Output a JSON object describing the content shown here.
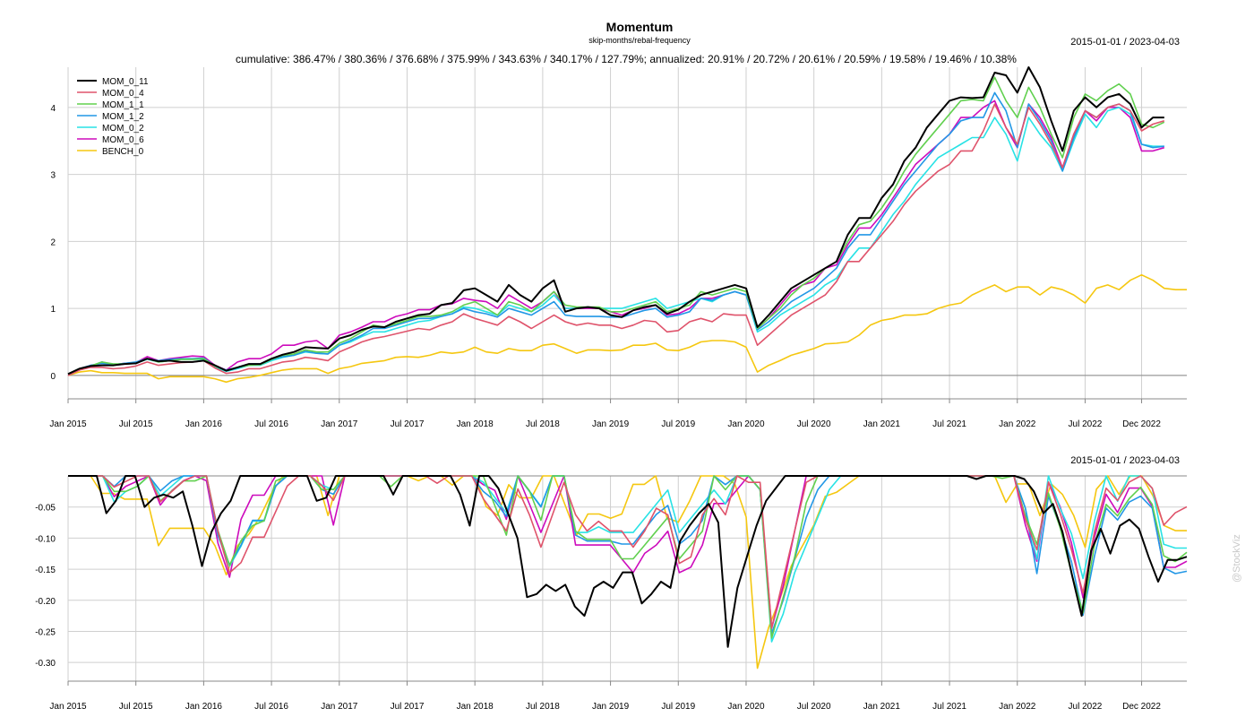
{
  "page": {
    "title": "Momentum",
    "subtitle": "skip-months/rebal-frequency",
    "summary": "cumulative: 386.47% / 380.36% / 376.68% / 375.99% / 343.63% / 340.17% / 127.79%; annualized: 20.91% / 20.72% / 20.61% / 20.59% / 19.58% / 19.46% / 10.38%",
    "date_range_top": "2015-01-01 / 2023-04-03",
    "date_range_bottom": "2015-01-01 / 2023-04-03",
    "watermark": "@StockViz"
  },
  "chart_data": [
    {
      "type": "line",
      "title": "Momentum",
      "subtitle": "skip-months/rebal-frequency",
      "xlabel": "",
      "ylabel": "",
      "ylim": [
        -0.35,
        4.6
      ],
      "grid": true,
      "legend_position": "top-left",
      "x_tick_labels": [
        "Jan 2015",
        "Jul 2015",
        "Jan 2016",
        "Jul 2016",
        "Jan 2017",
        "Jul 2017",
        "Jan 2018",
        "Jul 2018",
        "Jan 2019",
        "Jul 2019",
        "Jan 2020",
        "Jul 2020",
        "Jan 2021",
        "Jul 2021",
        "Jan 2022",
        "Jul 2022",
        "Dec 2022"
      ],
      "y_ticks": [
        0,
        1,
        2,
        3,
        4
      ],
      "x_start": "2015-01",
      "series": [
        {
          "name": "MOM_0_11",
          "color": "#000000",
          "values": [
            0.02,
            0.1,
            0.14,
            0.15,
            0.15,
            0.17,
            0.18,
            0.25,
            0.21,
            0.22,
            0.2,
            0.2,
            0.22,
            0.15,
            0.07,
            0.12,
            0.17,
            0.17,
            0.25,
            0.31,
            0.35,
            0.42,
            0.41,
            0.4,
            0.55,
            0.6,
            0.68,
            0.73,
            0.72,
            0.8,
            0.85,
            0.9,
            0.92,
            1.05,
            1.08,
            1.27,
            1.3,
            1.2,
            1.1,
            1.35,
            1.2,
            1.1,
            1.3,
            1.42,
            0.95,
            1.0,
            1.02,
            1.0,
            0.9,
            0.87,
            0.97,
            1.02,
            1.05,
            0.92,
            0.98,
            1.1,
            1.2,
            1.25,
            1.3,
            1.35,
            1.3,
            0.72,
            0.9,
            1.1,
            1.3,
            1.4,
            1.5,
            1.6,
            1.7,
            2.1,
            2.35,
            2.35,
            2.65,
            2.85,
            3.2,
            3.4,
            3.7,
            3.9,
            4.1,
            4.15,
            4.14,
            4.15,
            4.52,
            4.48,
            4.22,
            4.6,
            4.3,
            3.8,
            3.35,
            3.95,
            4.15,
            4.0,
            4.15,
            4.2,
            4.05,
            3.7,
            3.85,
            3.85
          ]
        },
        {
          "name": "MOM_0_4",
          "color": "#df536b",
          "values": [
            0.0,
            0.08,
            0.12,
            0.12,
            0.1,
            0.11,
            0.14,
            0.2,
            0.15,
            0.17,
            0.19,
            0.2,
            0.22,
            0.11,
            0.03,
            0.05,
            0.1,
            0.1,
            0.15,
            0.2,
            0.22,
            0.27,
            0.25,
            0.22,
            0.35,
            0.42,
            0.5,
            0.55,
            0.58,
            0.62,
            0.66,
            0.7,
            0.68,
            0.75,
            0.8,
            0.92,
            0.85,
            0.8,
            0.75,
            0.88,
            0.8,
            0.7,
            0.8,
            0.9,
            0.8,
            0.75,
            0.78,
            0.75,
            0.75,
            0.7,
            0.75,
            0.82,
            0.8,
            0.65,
            0.67,
            0.8,
            0.85,
            0.8,
            0.92,
            0.9,
            0.9,
            0.45,
            0.6,
            0.75,
            0.9,
            1.0,
            1.1,
            1.2,
            1.4,
            1.7,
            1.7,
            1.9,
            2.1,
            2.3,
            2.55,
            2.75,
            2.9,
            3.05,
            3.15,
            3.35,
            3.35,
            3.65,
            4.05,
            3.7,
            3.45,
            4.0,
            3.75,
            3.45,
            3.1,
            3.6,
            3.95,
            3.85,
            4.0,
            4.05,
            3.95,
            3.65,
            3.75,
            3.8
          ]
        },
        {
          "name": "MOM_1_1",
          "color": "#61d04f",
          "values": [
            0.02,
            0.1,
            0.14,
            0.2,
            0.17,
            0.17,
            0.18,
            0.25,
            0.2,
            0.22,
            0.24,
            0.24,
            0.25,
            0.14,
            0.07,
            0.12,
            0.15,
            0.16,
            0.24,
            0.3,
            0.32,
            0.38,
            0.35,
            0.35,
            0.48,
            0.55,
            0.65,
            0.75,
            0.72,
            0.77,
            0.82,
            0.88,
            0.88,
            0.9,
            0.95,
            1.05,
            1.1,
            1.0,
            0.9,
            1.1,
            1.05,
            0.95,
            1.1,
            1.25,
            1.05,
            1.02,
            1.02,
            1.02,
            0.95,
            0.95,
            1.0,
            1.05,
            1.1,
            0.95,
            1.0,
            1.05,
            1.25,
            1.2,
            1.25,
            1.3,
            1.25,
            0.7,
            0.85,
            1.0,
            1.2,
            1.35,
            1.45,
            1.6,
            1.7,
            2.0,
            2.25,
            2.3,
            2.5,
            2.75,
            3.05,
            3.3,
            3.5,
            3.7,
            3.9,
            4.1,
            4.12,
            4.1,
            4.45,
            4.1,
            3.85,
            4.3,
            4.0,
            3.6,
            3.25,
            3.85,
            4.2,
            4.1,
            4.25,
            4.35,
            4.2,
            3.75,
            3.7,
            3.78
          ]
        },
        {
          "name": "MOM_1_2",
          "color": "#2297e6",
          "values": [
            0.02,
            0.1,
            0.15,
            0.18,
            0.16,
            0.18,
            0.2,
            0.25,
            0.22,
            0.24,
            0.25,
            0.25,
            0.26,
            0.14,
            0.08,
            0.12,
            0.17,
            0.17,
            0.24,
            0.28,
            0.3,
            0.36,
            0.33,
            0.32,
            0.45,
            0.52,
            0.6,
            0.7,
            0.7,
            0.75,
            0.8,
            0.85,
            0.85,
            0.88,
            0.92,
            1.0,
            0.95,
            0.92,
            0.87,
            1.0,
            0.95,
            0.9,
            1.0,
            1.1,
            0.9,
            0.88,
            0.88,
            0.88,
            0.87,
            0.87,
            0.92,
            0.97,
            1.0,
            0.87,
            0.9,
            0.95,
            1.15,
            1.12,
            1.2,
            1.25,
            1.2,
            0.68,
            0.8,
            0.95,
            1.1,
            1.2,
            1.3,
            1.45,
            1.6,
            1.9,
            2.1,
            2.1,
            2.35,
            2.6,
            2.85,
            3.05,
            3.25,
            3.45,
            3.6,
            3.8,
            3.85,
            3.85,
            4.22,
            3.95,
            3.4,
            4.05,
            3.8,
            3.5,
            3.05,
            3.55,
            3.95,
            3.85,
            4.0,
            4.05,
            3.95,
            3.45,
            3.4,
            3.42
          ]
        },
        {
          "name": "MOM_0_2",
          "color": "#28e2e5",
          "values": [
            0.02,
            0.1,
            0.14,
            0.2,
            0.15,
            0.17,
            0.18,
            0.24,
            0.2,
            0.22,
            0.24,
            0.24,
            0.24,
            0.12,
            0.06,
            0.1,
            0.15,
            0.15,
            0.22,
            0.27,
            0.3,
            0.35,
            0.33,
            0.32,
            0.45,
            0.5,
            0.58,
            0.65,
            0.65,
            0.7,
            0.75,
            0.8,
            0.82,
            0.88,
            0.92,
            1.02,
            1.0,
            0.95,
            0.9,
            1.05,
            1.0,
            0.95,
            1.05,
            1.2,
            1.0,
            1.0,
            1.02,
            1.0,
            1.0,
            1.0,
            1.05,
            1.1,
            1.15,
            1.0,
            1.05,
            1.1,
            1.15,
            1.1,
            1.2,
            1.25,
            1.2,
            0.65,
            0.75,
            0.9,
            1.0,
            1.1,
            1.2,
            1.35,
            1.45,
            1.7,
            1.9,
            1.9,
            2.15,
            2.4,
            2.6,
            2.85,
            3.05,
            3.25,
            3.35,
            3.45,
            3.55,
            3.55,
            3.85,
            3.6,
            3.2,
            3.85,
            3.6,
            3.4,
            3.05,
            3.5,
            3.9,
            3.7,
            3.95,
            4.0,
            3.9,
            3.45,
            3.42,
            3.42
          ]
        },
        {
          "name": "MOM_0_6",
          "color": "#cd0bbc",
          "values": [
            0.0,
            0.08,
            0.13,
            0.2,
            0.16,
            0.18,
            0.19,
            0.28,
            0.22,
            0.25,
            0.27,
            0.29,
            0.28,
            0.15,
            0.08,
            0.2,
            0.25,
            0.25,
            0.32,
            0.45,
            0.45,
            0.5,
            0.52,
            0.4,
            0.6,
            0.65,
            0.72,
            0.8,
            0.8,
            0.88,
            0.92,
            0.98,
            0.98,
            1.05,
            1.07,
            1.15,
            1.12,
            1.1,
            1.0,
            1.2,
            1.1,
            1.0,
            1.1,
            1.25,
            1.0,
            1.0,
            1.0,
            1.0,
            0.95,
            0.9,
            0.97,
            1.0,
            1.05,
            0.9,
            0.92,
            1.0,
            1.15,
            1.15,
            1.2,
            1.25,
            1.2,
            0.7,
            0.85,
            1.05,
            1.25,
            1.35,
            1.4,
            1.6,
            1.65,
            1.95,
            2.2,
            2.2,
            2.4,
            2.65,
            2.9,
            3.15,
            3.3,
            3.45,
            3.6,
            3.85,
            3.85,
            4.0,
            4.1,
            3.7,
            3.4,
            4.05,
            3.85,
            3.55,
            3.1,
            3.6,
            3.95,
            3.8,
            4.0,
            4.0,
            3.85,
            3.35,
            3.35,
            3.4
          ]
        },
        {
          "name": "BENCH_0",
          "color": "#f5c710",
          "values": [
            0.0,
            0.05,
            0.07,
            0.04,
            0.04,
            0.03,
            0.03,
            0.03,
            -0.05,
            -0.02,
            -0.02,
            -0.02,
            -0.02,
            -0.05,
            -0.1,
            -0.05,
            -0.03,
            0.0,
            0.04,
            0.08,
            0.1,
            0.1,
            0.1,
            0.03,
            0.1,
            0.13,
            0.18,
            0.2,
            0.22,
            0.27,
            0.28,
            0.27,
            0.3,
            0.35,
            0.33,
            0.35,
            0.42,
            0.35,
            0.33,
            0.4,
            0.37,
            0.37,
            0.45,
            0.47,
            0.4,
            0.33,
            0.38,
            0.38,
            0.37,
            0.38,
            0.45,
            0.45,
            0.48,
            0.38,
            0.37,
            0.42,
            0.5,
            0.52,
            0.52,
            0.5,
            0.42,
            0.05,
            0.15,
            0.22,
            0.3,
            0.35,
            0.4,
            0.47,
            0.48,
            0.5,
            0.6,
            0.75,
            0.82,
            0.85,
            0.9,
            0.9,
            0.92,
            1.0,
            1.05,
            1.08,
            1.2,
            1.28,
            1.35,
            1.25,
            1.32,
            1.32,
            1.2,
            1.32,
            1.28,
            1.2,
            1.08,
            1.3,
            1.35,
            1.28,
            1.42,
            1.5,
            1.42,
            1.3,
            1.28,
            1.28
          ]
        }
      ]
    },
    {
      "type": "line",
      "title": "",
      "xlabel": "",
      "ylabel": "",
      "ylim": [
        -0.33,
        0.0
      ],
      "grid": true,
      "x_tick_labels": [
        "Jan 2015",
        "Jul 2015",
        "Jan 2016",
        "Jul 2016",
        "Jan 2017",
        "Jul 2017",
        "Jan 2018",
        "Jul 2018",
        "Jan 2019",
        "Jul 2019",
        "Jan 2020",
        "Jul 2020",
        "Jan 2021",
        "Jul 2021",
        "Jan 2022",
        "Jul 2022",
        "Dec 2022"
      ],
      "y_ticks": [
        -0.05,
        -0.1,
        -0.15,
        -0.2,
        -0.25,
        -0.3
      ],
      "y_tick_labels": [
        "-0.05",
        "-0.10",
        "-0.15",
        "-0.20",
        "-0.25",
        "-0.30"
      ],
      "x_start": "2015-01",
      "series": [
        {
          "name": "MOM_0_11",
          "color": "#000000",
          "values": [
            0,
            0,
            0,
            0,
            -0.06,
            -0.04,
            0,
            0,
            -0.05,
            -0.035,
            -0.03,
            -0.035,
            -0.025,
            -0.08,
            -0.145,
            -0.09,
            -0.06,
            -0.04,
            0,
            0,
            0,
            0,
            0,
            0,
            0,
            0,
            -0.04,
            -0.035,
            0,
            0,
            0,
            0,
            0,
            0,
            -0.03,
            0,
            0,
            0,
            0,
            0,
            0,
            -0.03,
            -0.08,
            0,
            0,
            -0.02,
            -0.06,
            -0.1,
            -0.195,
            -0.19,
            -0.175,
            -0.185,
            -0.175,
            -0.21,
            -0.225,
            -0.18,
            -0.17,
            -0.18,
            -0.155,
            -0.155,
            -0.205,
            -0.19,
            -0.17,
            -0.18,
            -0.105,
            -0.08,
            -0.06,
            -0.045,
            -0.075,
            -0.275,
            -0.18,
            -0.13,
            -0.08,
            -0.04,
            -0.02,
            0,
            0,
            0,
            0,
            0,
            0,
            0,
            0,
            0,
            0,
            0,
            0,
            0,
            0,
            0,
            0,
            0,
            0,
            0,
            0,
            -0.005,
            0,
            0,
            0,
            0,
            -0.005,
            -0.025,
            -0.06,
            -0.045,
            -0.09,
            -0.16,
            -0.225,
            -0.12,
            -0.085,
            -0.125,
            -0.08,
            -0.07,
            -0.085,
            -0.13,
            -0.17,
            -0.135,
            -0.135,
            -0.13
          ]
        },
        {
          "name": "MOM_0_4",
          "color": "#df536b",
          "values": []
        },
        {
          "name": "MOM_1_1",
          "color": "#61d04f",
          "values": []
        },
        {
          "name": "MOM_1_2",
          "color": "#2297e6",
          "values": []
        },
        {
          "name": "MOM_0_2",
          "color": "#28e2e5",
          "values": []
        },
        {
          "name": "MOM_0_6",
          "color": "#cd0bbc",
          "values": []
        },
        {
          "name": "BENCH_0",
          "color": "#f5c710",
          "values": []
        }
      ]
    }
  ]
}
